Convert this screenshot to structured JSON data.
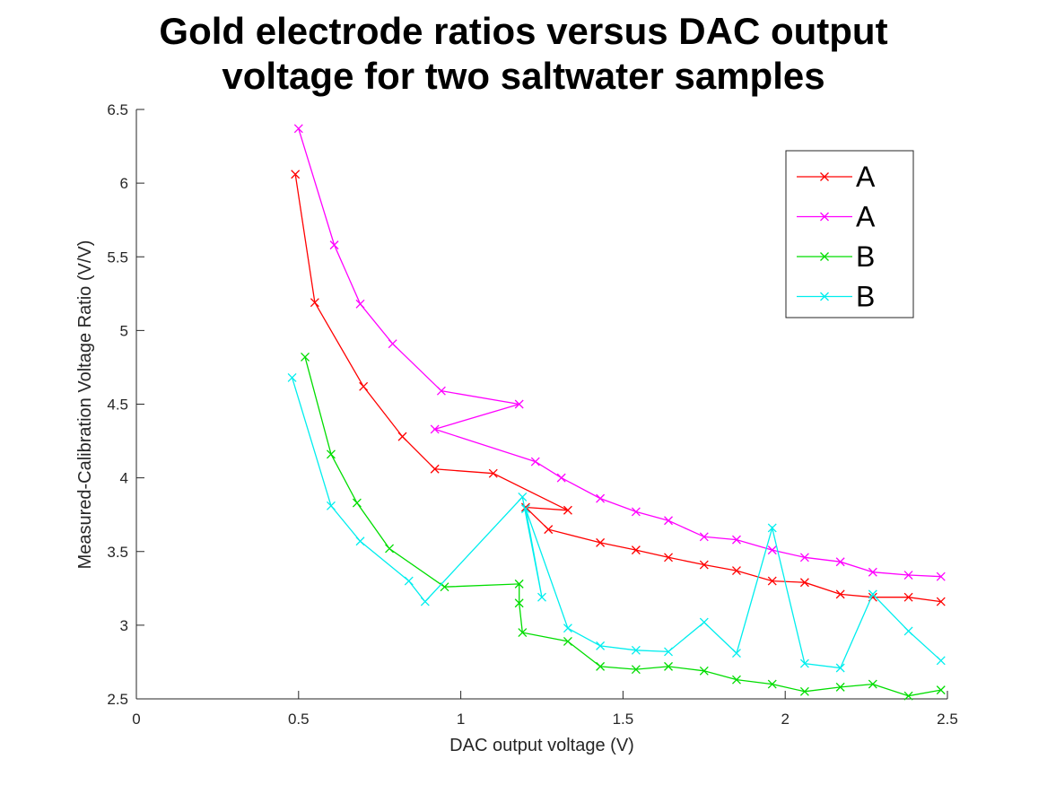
{
  "chart_data": {
    "type": "line",
    "title": [
      "Gold electrode ratios versus DAC output",
      "voltage for two saltwater samples"
    ],
    "xlabel": "DAC output voltage (V)",
    "ylabel": "Measured-Calibration Voltage Ratio (V/V)",
    "xlim": [
      0,
      2.5
    ],
    "ylim": [
      2.5,
      6.5
    ],
    "xticks": [
      0,
      0.5,
      1,
      1.5,
      2,
      2.5
    ],
    "xtick_labels": [
      "0",
      "0.5",
      "1",
      "1.5",
      "2",
      "2.5"
    ],
    "yticks": [
      2.5,
      3,
      3.5,
      4,
      4.5,
      5,
      5.5,
      6,
      6.5
    ],
    "ytick_labels": [
      "2.5",
      "3",
      "3.5",
      "4",
      "4.5",
      "5",
      "5.5",
      "6",
      "6.5"
    ],
    "grid": false,
    "legend_position": "top-right",
    "marker": "x",
    "series": [
      {
        "name": "A",
        "color": "#ff0000",
        "x": [
          0.49,
          0.55,
          0.7,
          0.82,
          0.92,
          1.1,
          1.33,
          1.2,
          1.27,
          1.43,
          1.54,
          1.64,
          1.75,
          1.85,
          1.96,
          2.06,
          2.17,
          2.27,
          2.38,
          2.48
        ],
        "y": [
          6.06,
          5.19,
          4.62,
          4.28,
          4.06,
          4.03,
          3.78,
          3.8,
          3.65,
          3.56,
          3.51,
          3.46,
          3.41,
          3.37,
          3.3,
          3.29,
          3.21,
          3.19,
          3.19,
          3.16
        ]
      },
      {
        "name": "A",
        "color": "#ff00ff",
        "x": [
          0.5,
          0.61,
          0.69,
          0.79,
          0.94,
          1.18,
          0.92,
          1.23,
          1.31,
          1.43,
          1.54,
          1.64,
          1.75,
          1.85,
          1.96,
          2.06,
          2.17,
          2.27,
          2.38,
          2.48
        ],
        "y": [
          6.37,
          5.58,
          5.18,
          4.91,
          4.59,
          4.5,
          4.33,
          4.11,
          4.0,
          3.86,
          3.77,
          3.71,
          3.6,
          3.58,
          3.51,
          3.46,
          3.43,
          3.36,
          3.34,
          3.33
        ]
      },
      {
        "name": "B",
        "color": "#00dd00",
        "x": [
          0.52,
          0.6,
          0.68,
          0.78,
          0.95,
          1.18,
          1.18,
          1.19,
          1.33,
          1.43,
          1.54,
          1.64,
          1.75,
          1.85,
          1.96,
          2.06,
          2.17,
          2.27,
          2.38,
          2.48
        ],
        "y": [
          4.82,
          4.16,
          3.83,
          3.52,
          3.26,
          3.28,
          3.15,
          2.95,
          2.89,
          2.72,
          2.7,
          2.72,
          2.69,
          2.63,
          2.6,
          2.55,
          2.58,
          2.6,
          2.52,
          2.56
        ]
      },
      {
        "name": "B",
        "color": "#00eeee",
        "x": [
          0.48,
          0.6,
          0.69,
          0.84,
          0.89,
          1.19,
          1.25,
          1.2,
          1.33,
          1.43,
          1.54,
          1.64,
          1.75,
          1.85,
          1.96,
          2.06,
          2.17,
          2.27,
          2.38,
          2.48
        ],
        "y": [
          4.68,
          3.81,
          3.57,
          3.3,
          3.16,
          3.87,
          3.19,
          3.79,
          2.98,
          2.86,
          2.83,
          2.82,
          3.02,
          2.81,
          3.66,
          2.74,
          2.71,
          3.21,
          2.96,
          2.76
        ]
      }
    ]
  }
}
